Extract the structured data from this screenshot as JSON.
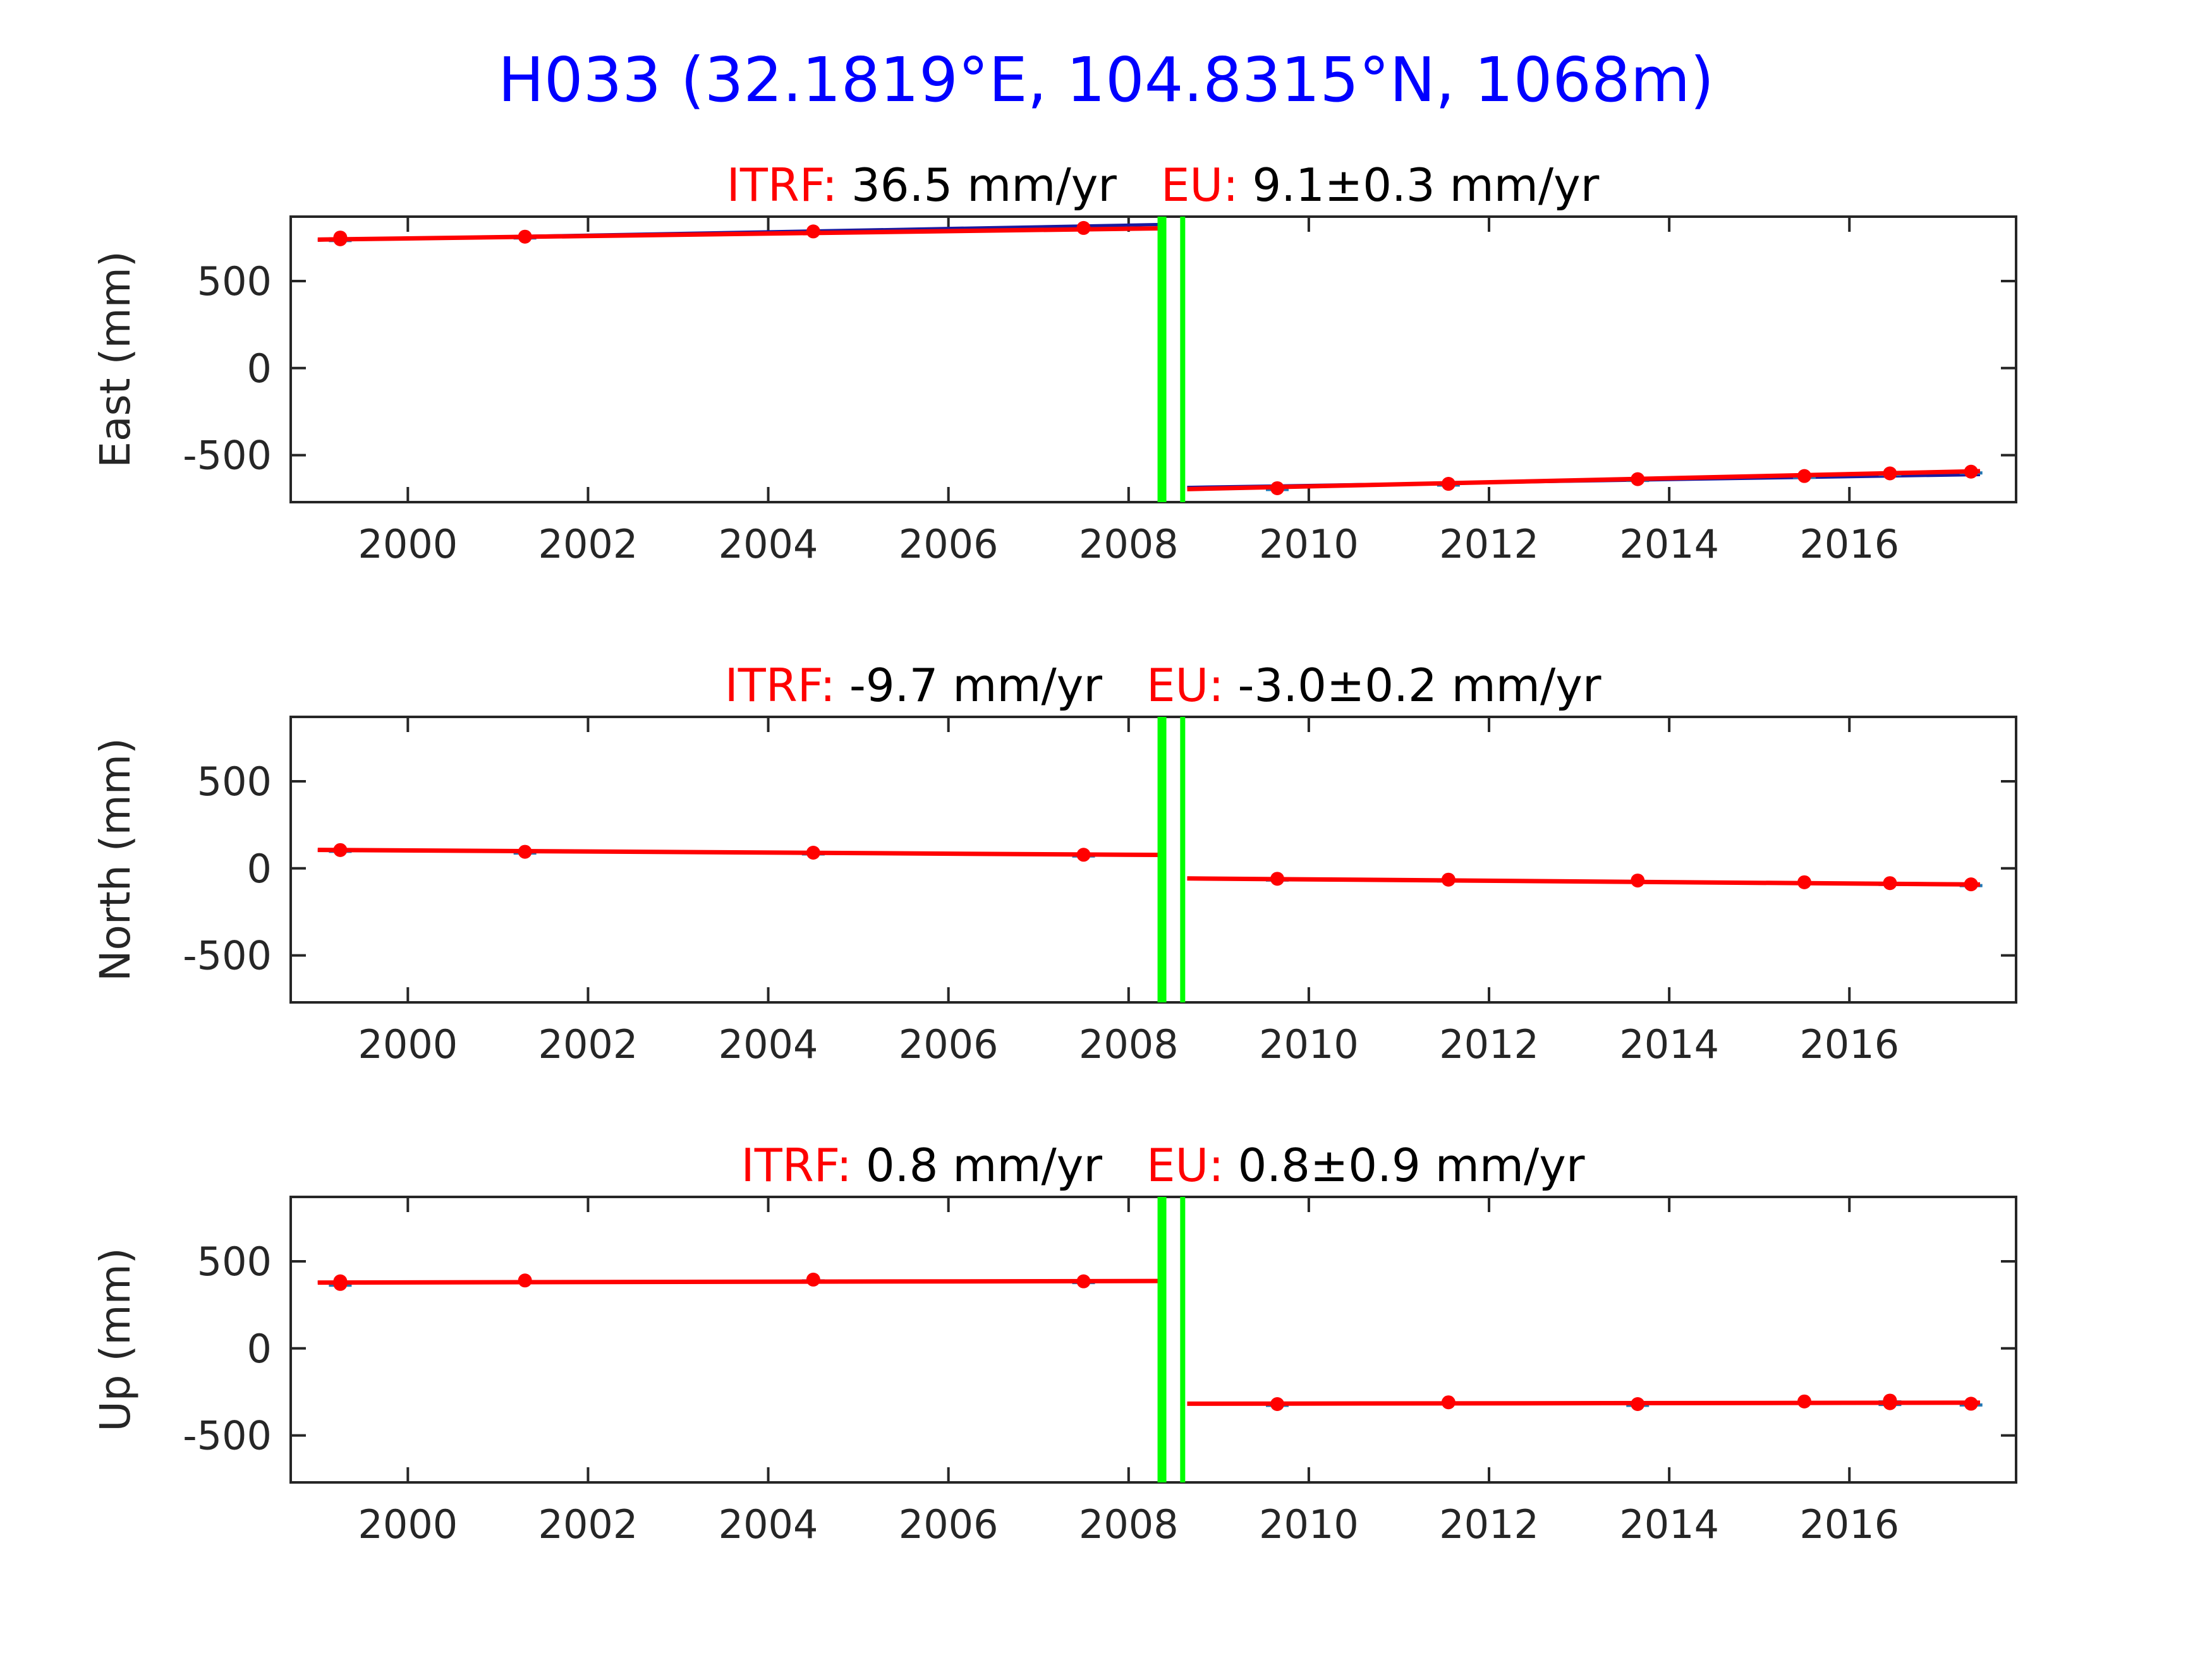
{
  "figure": {
    "title": "H033 (32.1819°E, 104.8315°N, 1068m)",
    "title_color": "#0000ff"
  },
  "colors": {
    "points": "#ff0000",
    "fit": "#ff0000",
    "model": "#1a1aa0",
    "errorbar": "#1f77b4",
    "event": "#00ff00",
    "label": "#ff0000",
    "text": "#000000",
    "axis": "#262626"
  },
  "chart_data": [
    {
      "type": "line",
      "component": "east",
      "ylabel": "East (mm)",
      "subtitle": {
        "itrf_label": "ITRF:",
        "itrf_value": "36.5 mm/yr",
        "eu_label": "EU:",
        "eu_value": "9.1±0.3 mm/yr"
      },
      "xlim": [
        1998.7,
        2017.85
      ],
      "ylim": [
        -770,
        870
      ],
      "xticks": [
        2000,
        2002,
        2004,
        2006,
        2008,
        2010,
        2012,
        2014,
        2016
      ],
      "yticks": [
        500,
        0,
        -500
      ],
      "events": [
        2008.37,
        2008.6
      ],
      "points": {
        "x": [
          1999.25,
          1999.25,
          2001.3,
          2004.5,
          2007.5,
          2009.65,
          2011.55,
          2013.65,
          2015.5,
          2016.45,
          2017.35
        ],
        "y": [
          740,
          750,
          755,
          785,
          805,
          -690,
          -665,
          -638,
          -620,
          -605,
          -595
        ]
      },
      "fit_segments": [
        {
          "x": [
            1999.0,
            2008.35
          ],
          "y": [
            738,
            803
          ]
        },
        {
          "x": [
            2008.65,
            2017.45
          ],
          "y": [
            -695,
            -592
          ]
        }
      ],
      "model_segments": [
        {
          "x": [
            1999.0,
            2008.35
          ],
          "y": [
            735,
            825
          ]
        },
        {
          "x": [
            2008.65,
            2017.45
          ],
          "y": [
            -685,
            -612
          ]
        }
      ]
    },
    {
      "type": "line",
      "component": "north",
      "ylabel": "North (mm)",
      "subtitle": {
        "itrf_label": "ITRF:",
        "itrf_value": "-9.7 mm/yr",
        "eu_label": "EU:",
        "eu_value": "-3.0±0.2 mm/yr"
      },
      "xlim": [
        1998.7,
        2017.85
      ],
      "ylim": [
        -770,
        870
      ],
      "xticks": [
        2000,
        2002,
        2004,
        2006,
        2008,
        2010,
        2012,
        2014,
        2016
      ],
      "yticks": [
        500,
        0,
        -500
      ],
      "events": [
        2008.37,
        2008.6
      ],
      "points": {
        "x": [
          1999.25,
          2001.3,
          2004.5,
          2007.5,
          2009.65,
          2011.55,
          2013.65,
          2015.5,
          2016.45,
          2017.35
        ],
        "y": [
          105,
          95,
          90,
          78,
          -60,
          -65,
          -70,
          -80,
          -85,
          -92
        ]
      },
      "fit_segments": [
        {
          "x": [
            1999.0,
            2008.35
          ],
          "y": [
            106,
            77
          ]
        },
        {
          "x": [
            2008.65,
            2017.45
          ],
          "y": [
            -58,
            -93
          ]
        }
      ],
      "model_segments": [
        {
          "x": [
            1999.0,
            2008.35
          ],
          "y": [
            104,
            79
          ]
        },
        {
          "x": [
            2008.65,
            2017.45
          ],
          "y": [
            -60,
            -90
          ]
        }
      ]
    },
    {
      "type": "line",
      "component": "up",
      "ylabel": "Up (mm)",
      "subtitle": {
        "itrf_label": "ITRF:",
        "itrf_value": "0.8 mm/yr",
        "eu_label": "EU:",
        "eu_value": "0.8±0.9 mm/yr"
      },
      "xlim": [
        1998.7,
        2017.85
      ],
      "ylim": [
        -770,
        870
      ],
      "xticks": [
        2000,
        2002,
        2004,
        2006,
        2008,
        2010,
        2012,
        2014,
        2016
      ],
      "yticks": [
        500,
        0,
        -500
      ],
      "events": [
        2008.37,
        2008.6
      ],
      "points": {
        "x": [
          1999.25,
          1999.25,
          2001.3,
          2004.5,
          2007.5,
          2009.65,
          2011.55,
          2013.65,
          2015.5,
          2016.45,
          2016.45,
          2017.35
        ],
        "y": [
          385,
          370,
          390,
          395,
          385,
          -320,
          -310,
          -320,
          -305,
          -300,
          -315,
          -318
        ]
      },
      "fit_segments": [
        {
          "x": [
            1999.0,
            2008.35
          ],
          "y": [
            378,
            387
          ]
        },
        {
          "x": [
            2008.65,
            2017.45
          ],
          "y": [
            -318,
            -312
          ]
        }
      ],
      "model_segments": [
        {
          "x": [
            1999.0,
            2008.35
          ],
          "y": [
            380,
            389
          ]
        },
        {
          "x": [
            2008.65,
            2017.45
          ],
          "y": [
            -320,
            -314
          ]
        }
      ]
    }
  ]
}
